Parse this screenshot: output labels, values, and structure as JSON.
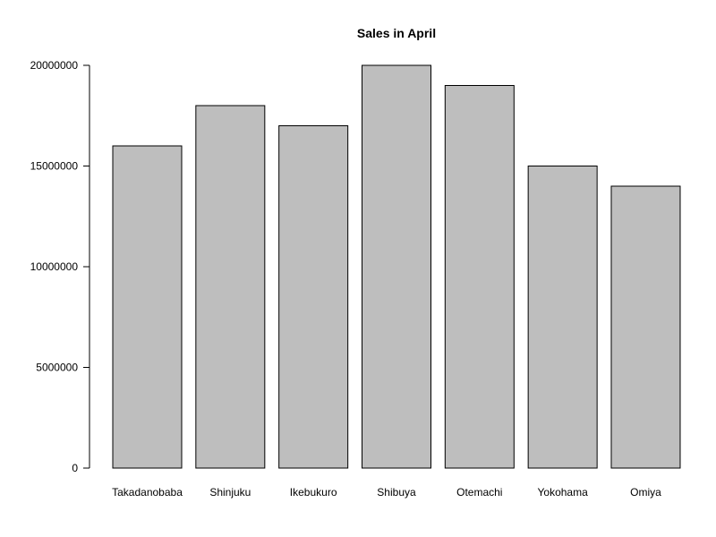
{
  "chart_data": {
    "type": "bar",
    "title": "Sales in April",
    "xlabel": "",
    "ylabel": "",
    "categories": [
      "Takadanobaba",
      "Shinjuku",
      "Ikebukuro",
      "Shibuya",
      "Otemachi",
      "Yokohama",
      "Omiya"
    ],
    "values": [
      16000000,
      18000000,
      17000000,
      20000000,
      19000000,
      15000000,
      14000000
    ],
    "ylim": [
      0,
      20000000
    ],
    "yticks": [
      0,
      5000000,
      10000000,
      15000000,
      20000000
    ],
    "ytick_labels": [
      "0",
      "5000000",
      "10000000",
      "15000000",
      "20000000"
    ],
    "grid": false,
    "legend": "none",
    "bar_color": "#bebebe",
    "edge_color": "#000000"
  }
}
